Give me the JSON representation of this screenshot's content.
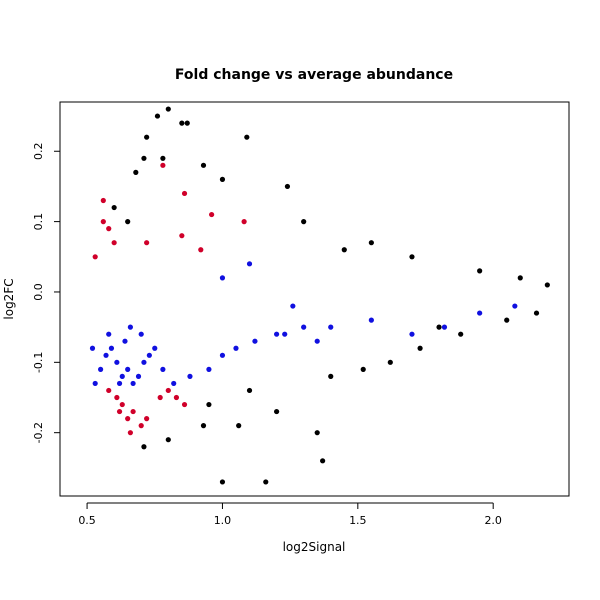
{
  "chart_data": {
    "type": "scatter",
    "title": "Fold change vs average abundance",
    "xlabel": "log2Signal",
    "ylabel": "log2FC",
    "xlim": [
      0.4,
      2.28
    ],
    "ylim": [
      -0.29,
      0.27
    ],
    "xticks": [
      0.5,
      1.0,
      1.5,
      2.0
    ],
    "xtick_labels": [
      "0.5",
      "1.0",
      "1.5",
      "2.0"
    ],
    "yticks": [
      -0.2,
      -0.1,
      0.0,
      0.1,
      0.2
    ],
    "ytick_labels": [
      "-0.2",
      "-0.1",
      "0.0",
      "0.1",
      "0.2"
    ],
    "grid": false,
    "legend": "none",
    "colors": {
      "not_significant": "#000000",
      "up": "#d0002a",
      "down": "#1010e0"
    },
    "series": [
      {
        "color": "#000000",
        "points": [
          [
            0.76,
            0.25
          ],
          [
            0.8,
            0.26
          ],
          [
            0.85,
            0.24
          ],
          [
            0.87,
            0.24
          ],
          [
            0.72,
            0.22
          ],
          [
            1.09,
            0.22
          ],
          [
            0.78,
            0.19
          ],
          [
            0.71,
            0.19
          ],
          [
            1.24,
            0.15
          ],
          [
            1.0,
            0.16
          ],
          [
            0.93,
            0.18
          ],
          [
            0.68,
            0.17
          ],
          [
            1.55,
            0.07
          ],
          [
            1.7,
            0.05
          ],
          [
            1.95,
            0.03
          ],
          [
            2.1,
            0.02
          ],
          [
            2.2,
            0.01
          ],
          [
            1.0,
            -0.27
          ],
          [
            1.16,
            -0.27
          ],
          [
            1.37,
            -0.24
          ],
          [
            1.35,
            -0.2
          ],
          [
            0.71,
            -0.22
          ],
          [
            0.8,
            -0.21
          ],
          [
            0.93,
            -0.19
          ],
          [
            1.06,
            -0.19
          ],
          [
            1.2,
            -0.17
          ],
          [
            1.52,
            -0.11
          ],
          [
            1.73,
            -0.08
          ],
          [
            1.88,
            -0.06
          ],
          [
            2.05,
            -0.04
          ],
          [
            2.16,
            -0.03
          ],
          [
            0.6,
            0.12
          ],
          [
            0.65,
            0.1
          ],
          [
            1.3,
            0.1
          ],
          [
            1.45,
            0.06
          ],
          [
            0.95,
            -0.16
          ],
          [
            1.1,
            -0.14
          ],
          [
            1.4,
            -0.12
          ],
          [
            1.62,
            -0.1
          ],
          [
            1.8,
            -0.05
          ]
        ]
      },
      {
        "color": "#d0002a",
        "points": [
          [
            0.56,
            0.13
          ],
          [
            0.56,
            0.1
          ],
          [
            0.58,
            0.09
          ],
          [
            0.78,
            0.18
          ],
          [
            0.86,
            0.14
          ],
          [
            0.96,
            0.11
          ],
          [
            0.72,
            0.07
          ],
          [
            0.85,
            0.08
          ],
          [
            1.08,
            0.1
          ],
          [
            0.53,
            0.05
          ],
          [
            0.6,
            0.07
          ],
          [
            0.92,
            0.06
          ],
          [
            0.58,
            -0.14
          ],
          [
            0.61,
            -0.15
          ],
          [
            0.63,
            -0.16
          ],
          [
            0.65,
            -0.18
          ],
          [
            0.67,
            -0.17
          ],
          [
            0.7,
            -0.19
          ],
          [
            0.72,
            -0.18
          ],
          [
            0.77,
            -0.15
          ],
          [
            0.8,
            -0.14
          ],
          [
            0.83,
            -0.15
          ],
          [
            0.86,
            -0.16
          ],
          [
            0.62,
            -0.17
          ],
          [
            0.66,
            -0.2
          ]
        ]
      },
      {
        "color": "#1010e0",
        "points": [
          [
            0.53,
            -0.13
          ],
          [
            0.55,
            -0.11
          ],
          [
            0.57,
            -0.09
          ],
          [
            0.59,
            -0.08
          ],
          [
            0.61,
            -0.1
          ],
          [
            0.63,
            -0.12
          ],
          [
            0.65,
            -0.11
          ],
          [
            0.67,
            -0.13
          ],
          [
            0.69,
            -0.12
          ],
          [
            0.71,
            -0.1
          ],
          [
            0.73,
            -0.09
          ],
          [
            0.75,
            -0.08
          ],
          [
            0.62,
            -0.13
          ],
          [
            0.64,
            -0.07
          ],
          [
            0.7,
            -0.06
          ],
          [
            0.78,
            -0.11
          ],
          [
            0.82,
            -0.13
          ],
          [
            0.88,
            -0.12
          ],
          [
            0.95,
            -0.11
          ],
          [
            1.0,
            -0.09
          ],
          [
            1.05,
            -0.08
          ],
          [
            1.12,
            -0.07
          ],
          [
            1.2,
            -0.06
          ],
          [
            1.3,
            -0.05
          ],
          [
            1.4,
            -0.05
          ],
          [
            1.55,
            -0.04
          ],
          [
            1.7,
            -0.06
          ],
          [
            1.82,
            -0.05
          ],
          [
            1.95,
            -0.03
          ],
          [
            2.08,
            -0.02
          ],
          [
            1.23,
            -0.06
          ],
          [
            1.35,
            -0.07
          ],
          [
            0.58,
            -0.06
          ],
          [
            0.52,
            -0.08
          ],
          [
            0.66,
            -0.05
          ],
          [
            1.0,
            0.02
          ],
          [
            1.1,
            0.04
          ],
          [
            1.26,
            -0.02
          ]
        ]
      }
    ]
  }
}
